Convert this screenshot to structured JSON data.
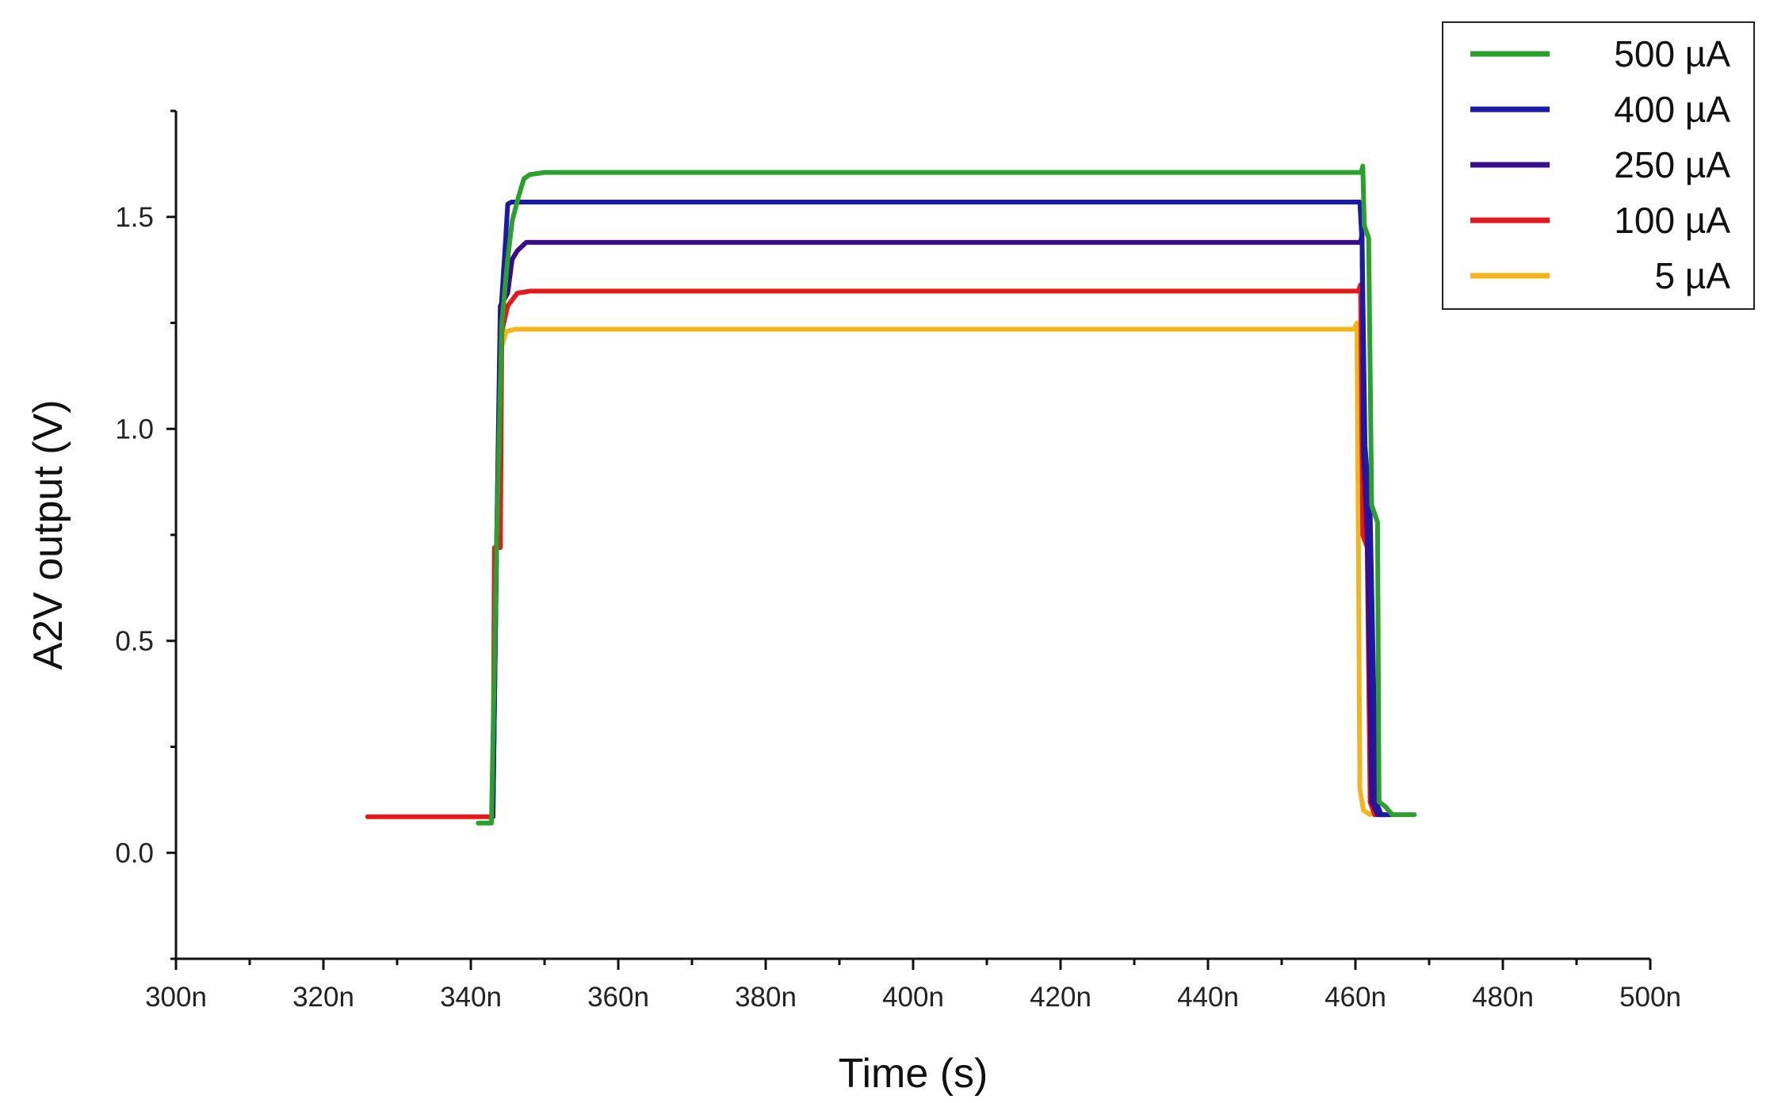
{
  "chart_data": {
    "type": "line",
    "title": "",
    "xlabel": "Time (s)",
    "ylabel": "A2V output (V)",
    "xlim": [
      300,
      500
    ],
    "ylim": [
      -0.25,
      1.75
    ],
    "x_ticks": [
      300,
      320,
      340,
      360,
      380,
      400,
      420,
      440,
      460,
      480,
      500
    ],
    "x_tick_labels": [
      "300n",
      "320n",
      "340n",
      "360n",
      "380n",
      "400n",
      "420n",
      "440n",
      "460n",
      "480n",
      "500n"
    ],
    "y_ticks": [
      0.0,
      0.5,
      1.0,
      1.5
    ],
    "y_tick_labels": [
      "0.0",
      "0.5",
      "1.0",
      "1.5"
    ],
    "grid": false,
    "legend_position": "top-right",
    "series": [
      {
        "name": "500 µA",
        "color": "#2ca02c",
        "points": [
          [
            341,
            0.07
          ],
          [
            342.8,
            0.07
          ],
          [
            343.5,
            0.72
          ],
          [
            344.2,
            1.25
          ],
          [
            345,
            1.4
          ],
          [
            345.6,
            1.49
          ],
          [
            346.5,
            1.55
          ],
          [
            347.2,
            1.59
          ],
          [
            348,
            1.6
          ],
          [
            350,
            1.605
          ],
          [
            460.8,
            1.605
          ],
          [
            461,
            1.62
          ],
          [
            461.2,
            1.48
          ],
          [
            461.8,
            1.45
          ],
          [
            462.2,
            0.82
          ],
          [
            463,
            0.78
          ],
          [
            463.2,
            0.12
          ],
          [
            464,
            0.11
          ],
          [
            465,
            0.09
          ],
          [
            468,
            0.09
          ]
        ]
      },
      {
        "name": "400 µA",
        "color": "#1a1aa6",
        "points": [
          [
            343,
            0.085
          ],
          [
            343.5,
            0.72
          ],
          [
            344.1,
            1.28
          ],
          [
            344.7,
            1.44
          ],
          [
            345,
            1.53
          ],
          [
            345.5,
            1.535
          ],
          [
            460.6,
            1.535
          ],
          [
            460.9,
            1.44
          ],
          [
            461.3,
            0.96
          ],
          [
            462,
            0.8
          ],
          [
            462.8,
            0.12
          ],
          [
            463.5,
            0.09
          ],
          [
            465,
            0.09
          ]
        ]
      },
      {
        "name": "250 µA",
        "color": "#3b0a8f",
        "points": [
          [
            343,
            0.085
          ],
          [
            343.5,
            0.72
          ],
          [
            344,
            1.29
          ],
          [
            345,
            1.32
          ],
          [
            345.6,
            1.4
          ],
          [
            346.3,
            1.42
          ],
          [
            347.5,
            1.44
          ],
          [
            460.7,
            1.44
          ],
          [
            460.9,
            1.46
          ],
          [
            461.1,
            0.95
          ],
          [
            461.6,
            0.74
          ],
          [
            462.2,
            0.12
          ],
          [
            463,
            0.09
          ],
          [
            464,
            0.09
          ]
        ]
      },
      {
        "name": "100 µA",
        "color": "#e31a1c",
        "points": [
          [
            326,
            0.085
          ],
          [
            343,
            0.085
          ],
          [
            343.2,
            0.72
          ],
          [
            344,
            0.72
          ],
          [
            344.2,
            1.23
          ],
          [
            345,
            1.29
          ],
          [
            346.3,
            1.32
          ],
          [
            348,
            1.325
          ],
          [
            460.4,
            1.325
          ],
          [
            460.7,
            1.34
          ],
          [
            461,
            0.75
          ],
          [
            461.6,
            0.72
          ],
          [
            462,
            0.12
          ],
          [
            462.6,
            0.09
          ],
          [
            464,
            0.09
          ]
        ]
      },
      {
        "name": "5   µA",
        "color": "#f4b41a",
        "points": [
          [
            344.3,
            1.2
          ],
          [
            344.8,
            1.23
          ],
          [
            346,
            1.235
          ],
          [
            459.8,
            1.235
          ],
          [
            460.2,
            1.25
          ],
          [
            460.4,
            0.75
          ],
          [
            460.6,
            0.15
          ],
          [
            461.1,
            0.1
          ],
          [
            462,
            0.09
          ]
        ]
      }
    ]
  }
}
